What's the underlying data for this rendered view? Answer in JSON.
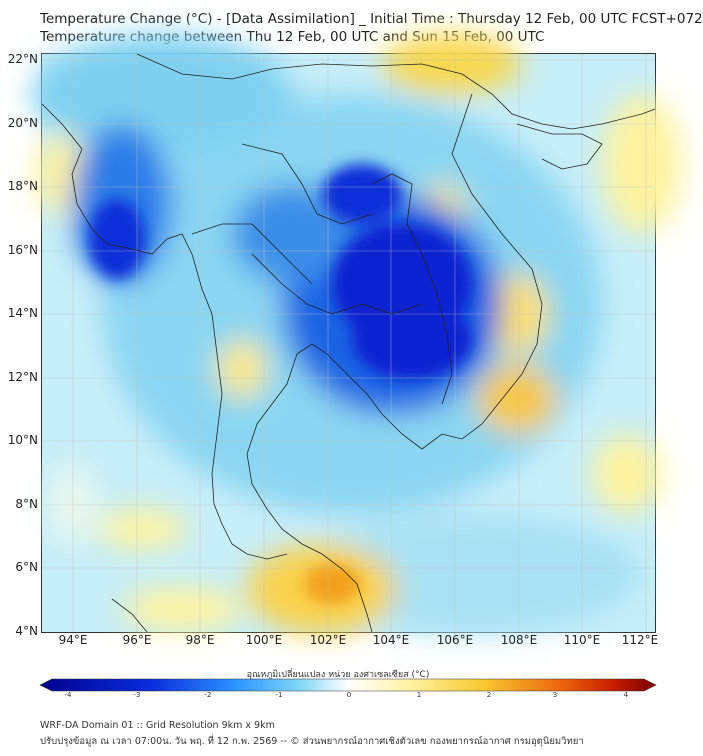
{
  "title": {
    "line1": "Temperature Change (°C) - [Data Assimilation] _ Initial Time : Thursday 12 Feb, 00 UTC FCST+072",
    "line2": "Temperature change between Thu 12 Feb, 00 UTC and Sun 15 Feb, 00 UTC"
  },
  "axes": {
    "lat_labels": [
      "22°N",
      "20°N",
      "18°N",
      "16°N",
      "14°N",
      "12°N",
      "10°N",
      "8°N",
      "6°N",
      "4°N"
    ],
    "lon_labels": [
      "94°E",
      "96°E",
      "98°E",
      "100°E",
      "102°E",
      "104°E",
      "106°E",
      "108°E",
      "110°E",
      "112°E"
    ]
  },
  "colorbar": {
    "title": "อุณหภูมิเปลี่ยนแปลง หน่วย องศาเซลเซียส (°C)",
    "ticks": [
      "-4",
      "-3",
      "-2",
      "-1",
      "0",
      "1",
      "2",
      "3",
      "4"
    ],
    "colors": {
      "cold": "#00008c",
      "cool": "#2d96ff",
      "neutral": "#ffffdc",
      "warm": "#ffa514",
      "hot": "#780000"
    }
  },
  "footer": {
    "line1": "WRF-DA Domain 01 :: Grid Resolution 9km x 9km",
    "line2": "ปรับปรุงข้อมูล ณ เวลา 07:00น. วัน พฤ. ที่ 12 ก.พ. 2569 -- © ส่วนพยากรณ์อากาศเชิงตัวเลข กองพยากรณ์อากาศ กรมอุตุนิยมวิทยา"
  }
}
